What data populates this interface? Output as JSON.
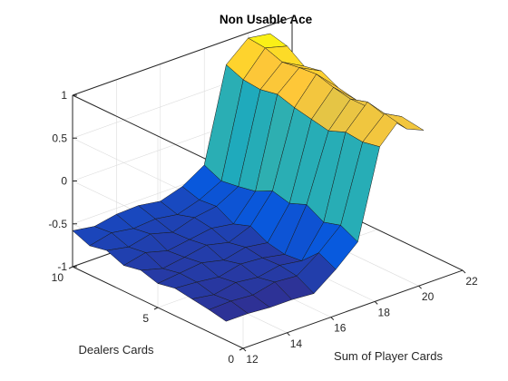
{
  "chart_data": {
    "type": "surface",
    "title": "Non Usable Ace",
    "xlabel": "Sum of Player Cards",
    "ylabel": "Dealers Cards",
    "zlabel": "",
    "x": [
      12,
      13,
      14,
      15,
      16,
      17,
      18,
      19,
      20,
      21
    ],
    "y": [
      1,
      2,
      3,
      4,
      5,
      6,
      7,
      8,
      9,
      10
    ],
    "z": [
      [
        -0.78,
        -0.78,
        -0.8,
        -0.8,
        -0.82,
        -0.63,
        -0.4,
        0.62,
        0.88,
        0.63
      ],
      [
        -0.74,
        -0.73,
        -0.75,
        -0.69,
        -0.71,
        -0.53,
        -0.3,
        0.58,
        0.82,
        0.55
      ],
      [
        -0.71,
        -0.75,
        -0.7,
        -0.73,
        -0.68,
        -0.72,
        -0.36,
        0.6,
        0.86,
        0.57
      ],
      [
        -0.68,
        -0.7,
        -0.73,
        -0.67,
        -0.69,
        -0.74,
        -0.25,
        0.52,
        0.8,
        0.59
      ],
      [
        -0.72,
        -0.69,
        -0.66,
        -0.72,
        -0.66,
        -0.7,
        -0.33,
        0.56,
        0.84,
        0.61
      ],
      [
        -0.66,
        -0.73,
        -0.69,
        -0.64,
        -0.7,
        -0.6,
        -0.28,
        0.6,
        0.9,
        0.65
      ],
      [
        -0.7,
        -0.64,
        -0.71,
        -0.67,
        -0.63,
        -0.67,
        -0.38,
        0.66,
        0.88,
        0.75
      ],
      [
        -0.62,
        -0.67,
        -0.61,
        -0.68,
        -0.6,
        -0.56,
        -0.42,
        0.62,
        0.85,
        0.71
      ],
      [
        -0.66,
        -0.6,
        -0.64,
        -0.62,
        -0.66,
        -0.58,
        -0.45,
        0.64,
        0.92,
        0.85
      ],
      [
        -0.58,
        -0.62,
        -0.57,
        -0.56,
        -0.6,
        -0.52,
        -0.36,
        0.72,
        0.94,
        0.9
      ]
    ],
    "xlim": [
      12,
      22
    ],
    "ylim": [
      0,
      10
    ],
    "zlim": [
      -1,
      1
    ],
    "x_ticks": [
      "12",
      "14",
      "16",
      "18",
      "20",
      "22"
    ],
    "y_ticks": [
      "0",
      "5",
      "10"
    ],
    "z_ticks": [
      "-1",
      "-0.5",
      "0",
      "0.5",
      "1"
    ],
    "grid": true,
    "colormap": "parula"
  }
}
